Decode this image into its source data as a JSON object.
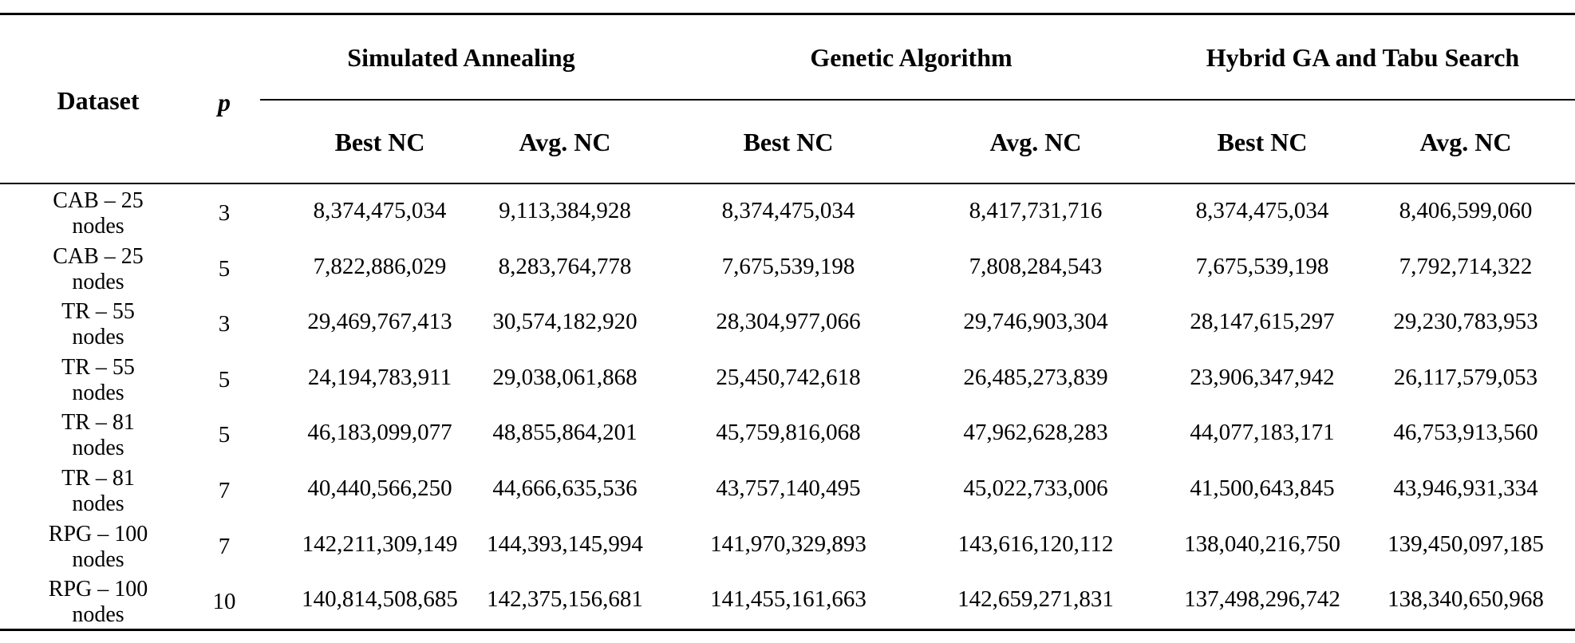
{
  "table": {
    "header": {
      "dataset": "Dataset",
      "p": "p",
      "groups": [
        "Simulated Annealing",
        "Genetic Algorithm",
        "Hybrid GA and Tabu Search"
      ],
      "sub": [
        "Best NC",
        "Avg. NC",
        "Best NC",
        "Avg. NC",
        "Best NC",
        "Avg. NC"
      ]
    },
    "rows": [
      {
        "dataset_line1": "CAB – 25",
        "dataset_line2": "nodes",
        "p": "3",
        "values": [
          "8,374,475,034",
          "9,113,384,928",
          "8,374,475,034",
          "8,417,731,716",
          "8,374,475,034",
          "8,406,599,060"
        ]
      },
      {
        "dataset_line1": "CAB – 25",
        "dataset_line2": "nodes",
        "p": "5",
        "values": [
          "7,822,886,029",
          "8,283,764,778",
          "7,675,539,198",
          "7,808,284,543",
          "7,675,539,198",
          "7,792,714,322"
        ]
      },
      {
        "dataset_line1": "TR – 55",
        "dataset_line2": "nodes",
        "p": "3",
        "values": [
          "29,469,767,413",
          "30,574,182,920",
          "28,304,977,066",
          "29,746,903,304",
          "28,147,615,297",
          "29,230,783,953"
        ]
      },
      {
        "dataset_line1": "TR – 55",
        "dataset_line2": "nodes",
        "p": "5",
        "values": [
          "24,194,783,911",
          "29,038,061,868",
          "25,450,742,618",
          "26,485,273,839",
          "23,906,347,942",
          "26,117,579,053"
        ]
      },
      {
        "dataset_line1": "TR – 81",
        "dataset_line2": "nodes",
        "p": "5",
        "values": [
          "46,183,099,077",
          "48,855,864,201",
          "45,759,816,068",
          "47,962,628,283",
          "44,077,183,171",
          "46,753,913,560"
        ]
      },
      {
        "dataset_line1": "TR – 81",
        "dataset_line2": "nodes",
        "p": "7",
        "values": [
          "40,440,566,250",
          "44,666,635,536",
          "43,757,140,495",
          "45,022,733,006",
          "41,500,643,845",
          "43,946,931,334"
        ]
      },
      {
        "dataset_line1": "RPG – 100",
        "dataset_line2": "nodes",
        "p": "7",
        "values": [
          "142,211,309,149",
          "144,393,145,994",
          "141,970,329,893",
          "143,616,120,112",
          "138,040,216,750",
          "139,450,097,185"
        ]
      },
      {
        "dataset_line1": "RPG – 100",
        "dataset_line2": "nodes",
        "p": "10",
        "values": [
          "140,814,508,685",
          "142,375,156,681",
          "141,455,161,663",
          "142,659,271,831",
          "137,498,296,742",
          "138,340,650,968"
        ]
      }
    ]
  }
}
